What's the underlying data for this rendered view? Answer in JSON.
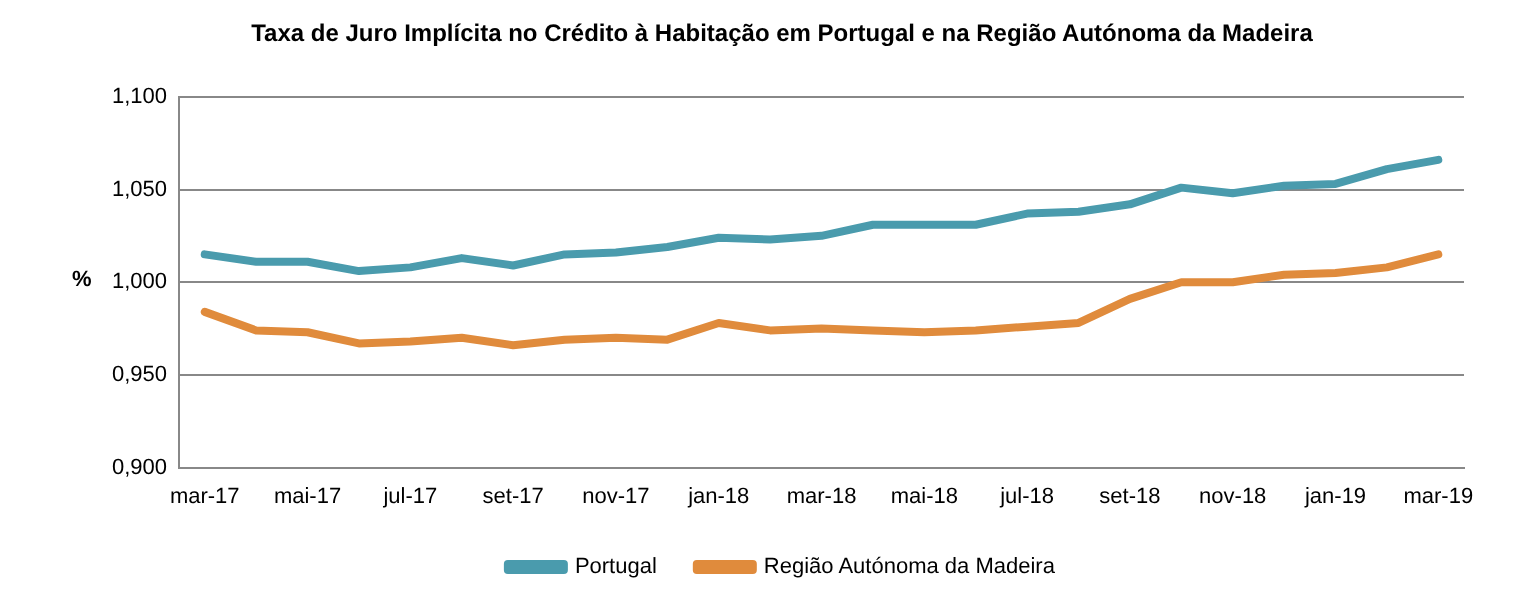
{
  "chart_data": {
    "type": "line",
    "title": "Taxa de Juro Implícita no Crédito à Habitação em Portugal e na Região Autónoma da Madeira",
    "ylabel": "%",
    "categories": [
      "mar-17",
      null,
      "mai-17",
      null,
      "jul-17",
      null,
      "set-17",
      null,
      "nov-17",
      null,
      "jan-18",
      null,
      "mar-18",
      null,
      "mai-18",
      null,
      "jul-18",
      null,
      "set-18",
      null,
      "nov-18",
      null,
      "jan-19",
      null,
      "mar-19"
    ],
    "series": [
      {
        "name": "Portugal",
        "color": "#4a9bad",
        "values": [
          1.015,
          1.011,
          1.011,
          1.006,
          1.008,
          1.013,
          1.009,
          1.015,
          1.016,
          1.019,
          1.024,
          1.023,
          1.025,
          1.031,
          1.031,
          1.031,
          1.037,
          1.038,
          1.042,
          1.051,
          1.048,
          1.052,
          1.053,
          1.061,
          1.066
        ]
      },
      {
        "name": "Região Autónoma da Madeira",
        "color": "#e08b3c",
        "values": [
          0.984,
          0.974,
          0.973,
          0.967,
          0.968,
          0.97,
          0.966,
          0.969,
          0.97,
          0.969,
          0.978,
          0.974,
          0.975,
          0.974,
          0.973,
          0.974,
          0.976,
          0.978,
          0.991,
          1.0,
          1.0,
          1.004,
          1.005,
          1.008,
          1.015
        ]
      }
    ],
    "ylim": [
      0.9,
      1.1
    ],
    "yticks": [
      {
        "value": 0.9,
        "label": "0,900"
      },
      {
        "value": 0.95,
        "label": "0,950"
      },
      {
        "value": 1.0,
        "label": "1,000"
      },
      {
        "value": 1.05,
        "label": "1,050"
      },
      {
        "value": 1.1,
        "label": "1,100"
      }
    ],
    "grid": "y",
    "legend": "bottom",
    "marker": "none",
    "line_style": "solid"
  }
}
